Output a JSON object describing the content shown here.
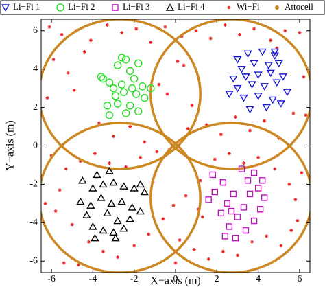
{
  "chart_data": {
    "type": "scatter",
    "xlabel": "X−axis (m)",
    "ylabel": "Y−axis (m)",
    "xlim": [
      -6.5,
      6.5
    ],
    "ylim": [
      -6.6,
      6.6
    ],
    "xticks": [
      -6,
      -4,
      -2,
      0,
      2,
      4,
      6
    ],
    "yticks": [
      -6,
      -4,
      -2,
      0,
      2,
      4,
      6
    ],
    "legend": "top",
    "series": [
      {
        "name": "Wi−Fi",
        "color": "#e82020",
        "marker": "star",
        "x": [
          -6.1,
          -5.5,
          -4.8,
          -4.1,
          -3.3,
          -2.6,
          -1.9,
          -1.2,
          -0.5,
          0.3,
          1.0,
          1.7,
          2.4,
          3.1,
          3.8,
          4.6,
          5.3,
          6.0,
          -5.9,
          -5.2,
          -4.4,
          -3.7,
          -3.0,
          -2.2,
          -1.5,
          -0.8,
          0.1,
          0.8,
          1.5,
          2.2,
          2.9,
          3.6,
          4.3,
          5.0,
          5.7,
          6.2,
          -6.0,
          -5.3,
          -4.6,
          -3.9,
          -3.2,
          -2.4,
          -1.7,
          -1.0,
          -0.3,
          0.5,
          1.2,
          1.9,
          2.6,
          3.3,
          4.0,
          4.8,
          5.5,
          6.1,
          -5.8,
          -5.0,
          -4.2,
          -3.5,
          -2.8,
          -2.0,
          -1.3,
          -0.6,
          0.2,
          0.9,
          1.6,
          2.3,
          3.0,
          3.7,
          4.4,
          5.1,
          5.9,
          -6.2,
          -5.6,
          -4.9,
          -0.1,
          0.6,
          -0.4,
          0.4,
          -1.1,
          1.3,
          5.6,
          -5.4,
          4.9,
          -4.7,
          6.3,
          -6.3,
          0.0,
          -0.9,
          1.1,
          5.8
        ],
        "values": [
          6.2,
          5.8,
          6.0,
          5.5,
          6.3,
          5.9,
          6.1,
          5.4,
          6.2,
          5.7,
          6.0,
          5.6,
          6.3,
          5.8,
          6.1,
          5.5,
          6.0,
          5.9,
          4.5,
          3.8,
          4.9,
          1.2,
          0.5,
          1.0,
          0.2,
          3.2,
          4.4,
          2.1,
          1.1,
          0.6,
          1.5,
          0.8,
          1.3,
          0.4,
          1.7,
          3.6,
          -0.5,
          -1.2,
          -0.8,
          -0.4,
          -0.9,
          -1.1,
          -0.6,
          -1.5,
          -0.2,
          -2.6,
          -1.8,
          -0.7,
          -0.4,
          -0.9,
          -0.6,
          -1.2,
          -2.0,
          -1.4,
          -3.4,
          -4.1,
          -5.0,
          -5.5,
          -5.8,
          -5.2,
          -4.6,
          -3.8,
          -4.9,
          -5.4,
          -5.9,
          -5.5,
          -5.7,
          -5.0,
          -4.7,
          -5.2,
          -3.9,
          2.5,
          -2.3,
          2.9,
          -3.1,
          0.9,
          2.7,
          4.2,
          -1.9,
          -3.7,
          -4.4,
          -6.1,
          5.1,
          -6.2,
          1.6,
          -3.0,
          -6.1,
          -0.3,
          -3.3,
          -2.8
        ]
      },
      {
        "name": "Attocell",
        "color": "#cc8822",
        "marker": "dot",
        "x": [
          -2.7,
          2.7,
          -2.7,
          2.7
        ],
        "values": [
          2.7,
          2.7,
          -2.7,
          -2.7
        ],
        "sizes": [
          3.9,
          3.9,
          3.9,
          3.9
        ]
      },
      {
        "name": "Li−Fi 1",
        "color": "#1818d0",
        "marker": "triangle-down",
        "x": [
          3,
          3.5,
          4.2,
          4.8,
          5,
          3.2,
          3.8,
          4.5,
          2.8,
          3.4,
          4,
          4.6,
          5.2,
          3,
          3.7,
          4.3,
          4.9,
          2.6,
          3.3,
          4,
          4.7,
          5.1,
          3.6,
          4.4,
          4.8,
          5.4
        ],
        "values": [
          4.5,
          4.8,
          4.9,
          4.7,
          4.3,
          4,
          4.3,
          4.2,
          3.5,
          3.6,
          3.7,
          3.8,
          3.6,
          3,
          3.2,
          3.1,
          3.3,
          2.7,
          2.5,
          2.6,
          2.4,
          2.2,
          1.9,
          2,
          4.9,
          2.8
        ]
      },
      {
        "name": "Li−Fi 2",
        "color": "#22dd22",
        "marker": "circle",
        "x": [
          -3.5,
          -3.2,
          -2.8,
          -2.4,
          -2.2,
          -1.8,
          -3,
          -2.6,
          -2,
          -1.6,
          -1.2,
          -2.9,
          -2.5,
          -1.9,
          -1.5,
          -3.3,
          -2.8,
          -2.2,
          -3.2,
          -2.4,
          -1.8,
          -2.6,
          -3.6,
          -2.1
        ],
        "values": [
          3.5,
          3.3,
          4.2,
          4.5,
          3.9,
          4.3,
          3,
          3.2,
          3.5,
          3.1,
          3,
          2.6,
          2.8,
          2.7,
          2.5,
          2.1,
          2.2,
          2.1,
          1.6,
          1.7,
          1.8,
          4.6,
          3.6,
          3
        ]
      },
      {
        "name": "Li−Fi 3",
        "color": "#c014c0",
        "marker": "square",
        "x": [
          3.2,
          3.8,
          4.2,
          1.8,
          2.3,
          3.5,
          4,
          1.9,
          2.8,
          3.6,
          1.6,
          2.5,
          3.3,
          4.1,
          2.2,
          3,
          3.8,
          2.6,
          3.4,
          2.4,
          2.9,
          4.3,
          2.7
        ],
        "values": [
          -1.2,
          -1.4,
          -1.8,
          -1.5,
          -1.9,
          -1.8,
          -2.2,
          -2.4,
          -2.5,
          -2.5,
          -2.8,
          -3,
          -3.2,
          -3.3,
          -3.5,
          -3.7,
          -3.9,
          -4.2,
          -4.4,
          -4.7,
          -4.8,
          -2.7,
          -3.4
        ]
      },
      {
        "name": "Li−Fi 4",
        "color": "#000000",
        "marker": "triangle-up",
        "x": [
          -3.8,
          -4.5,
          -4,
          -3.5,
          -3,
          -2.5,
          -2,
          -1.7,
          -1.5,
          -4.6,
          -4.1,
          -3.6,
          -3.1,
          -2.6,
          -2.1,
          -1.7,
          -4.3,
          -3.3,
          -2.8,
          -2.2,
          -4,
          -3.5,
          -3,
          -2.5,
          -3.9,
          -3.2,
          -2.9
        ],
        "values": [
          -1.5,
          -1.8,
          -2.2,
          -2,
          -1.9,
          -2.1,
          -2.2,
          -2,
          -2.4,
          -2.9,
          -3.1,
          -2.7,
          -3,
          -2.9,
          -3.2,
          -3.4,
          -3.6,
          -3.5,
          -3.9,
          -3.8,
          -4.2,
          -4.4,
          -4.5,
          -4.3,
          -4.8,
          -1.3,
          -4.8
        ]
      }
    ]
  }
}
